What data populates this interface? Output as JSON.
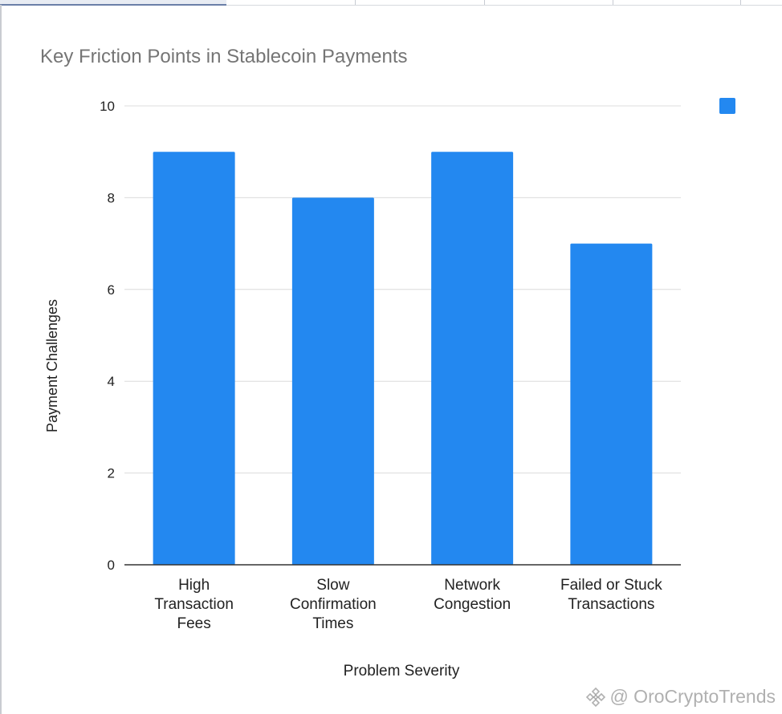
{
  "chart_data": {
    "type": "bar",
    "title": "Key Friction Points in Stablecoin Payments",
    "xlabel": "Problem Severity",
    "ylabel": "Payment Challenges",
    "categories": [
      [
        "High",
        "Transaction",
        "Fees"
      ],
      [
        "Slow",
        "Confirmation",
        "Times"
      ],
      [
        "Network",
        "Congestion"
      ],
      [
        "Failed or Stuck",
        "Transactions"
      ]
    ],
    "series": [
      {
        "values": [
          9,
          8,
          9,
          7
        ]
      }
    ],
    "ylim": [
      0,
      10
    ],
    "yticks": [
      0,
      2,
      4,
      6,
      8,
      10
    ],
    "grid": true,
    "legend": "top-right",
    "colors": {
      "bar": "#2388f0",
      "grid": "#dcdcdc",
      "axis": "#333333",
      "text": "#222222"
    }
  },
  "watermark": {
    "text": "@ OroCryptoTrends",
    "icon": "binance-logo-icon"
  }
}
